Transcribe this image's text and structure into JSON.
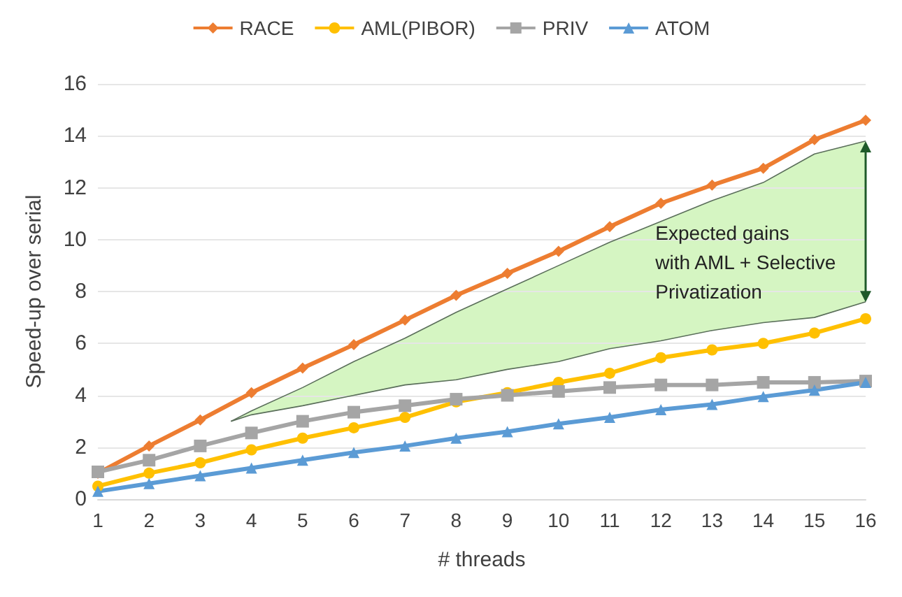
{
  "chart_data": {
    "type": "line",
    "xlabel": "# threads",
    "ylabel": "Speed-up over serial",
    "x": [
      1,
      2,
      3,
      4,
      5,
      6,
      7,
      8,
      9,
      10,
      11,
      12,
      13,
      14,
      15,
      16
    ],
    "series": [
      {
        "name": "RACE",
        "color": "#ed7d31",
        "marker": "diamond",
        "values": [
          1.0,
          2.05,
          3.05,
          4.1,
          5.05,
          5.95,
          6.9,
          7.85,
          8.7,
          9.55,
          10.5,
          11.4,
          12.1,
          12.75,
          13.85,
          14.6
        ]
      },
      {
        "name": "AML(PIBOR)",
        "color": "#ffc000",
        "marker": "circle",
        "values": [
          0.5,
          1.0,
          1.4,
          1.9,
          2.35,
          2.75,
          3.15,
          3.75,
          4.1,
          4.5,
          4.85,
          5.45,
          5.75,
          6.0,
          6.4,
          6.95
        ]
      },
      {
        "name": "PRIV",
        "color": "#a5a5a5",
        "marker": "square",
        "values": [
          1.05,
          1.5,
          2.05,
          2.55,
          3.0,
          3.35,
          3.6,
          3.85,
          4.0,
          4.15,
          4.3,
          4.4,
          4.4,
          4.5,
          4.5,
          4.55
        ]
      },
      {
        "name": "ATOM",
        "color": "#5b9bd5",
        "marker": "triangle",
        "values": [
          0.3,
          0.6,
          0.9,
          1.2,
          1.5,
          1.8,
          2.05,
          2.35,
          2.6,
          2.9,
          3.15,
          3.45,
          3.65,
          3.95,
          4.2,
          4.5
        ]
      },
      {
        "type": "line",
        "color": "#5a6e5a",
        "marker": "none",
        "x": [
          3.6,
          4,
          5,
          6,
          7,
          8,
          9,
          10,
          11,
          12,
          13,
          14,
          15,
          16
        ],
        "values": [
          3.0,
          3.4,
          4.3,
          5.3,
          6.2,
          7.2,
          8.1,
          9.0,
          9.9,
          10.7,
          11.5,
          12.2,
          13.3,
          13.8
        ]
      },
      {
        "type": "line",
        "color": "#5a6e5a",
        "marker": "none",
        "x": [
          3.6,
          4,
          5,
          6,
          7,
          8,
          9,
          10,
          11,
          12,
          13,
          14,
          15,
          16
        ],
        "values": [
          3.0,
          3.25,
          3.6,
          4.0,
          4.4,
          4.6,
          5.0,
          5.3,
          5.8,
          6.1,
          6.5,
          6.8,
          7.0,
          7.6
        ]
      }
    ],
    "xlim": [
      1,
      16
    ],
    "xticks": [
      1,
      2,
      3,
      4,
      5,
      6,
      7,
      8,
      9,
      10,
      11,
      12,
      13,
      14,
      15,
      16
    ],
    "ylim": [
      0,
      16
    ],
    "yticks": [
      0,
      2,
      4,
      6,
      8,
      10,
      12,
      14,
      16
    ],
    "grid": "y",
    "legend": "top",
    "annotations": [
      "Expected gains\nwith AML + Selective\nPrivatization"
    ]
  }
}
